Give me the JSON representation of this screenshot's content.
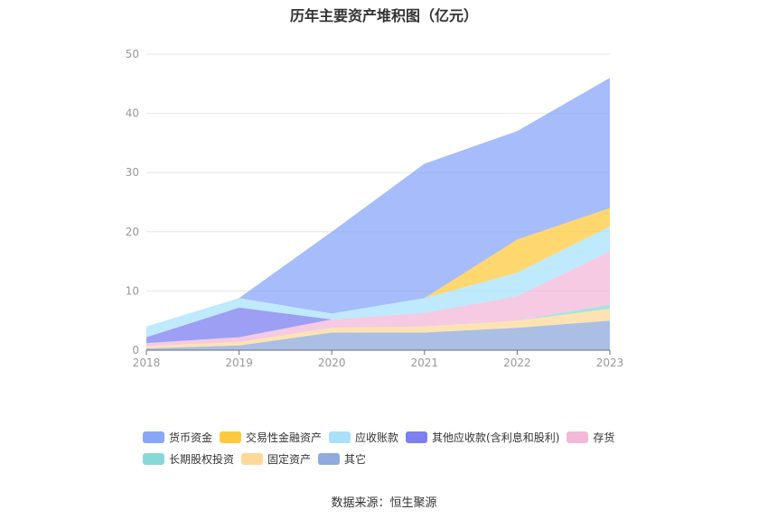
{
  "chart_data": {
    "type": "area",
    "stacked": true,
    "title": "历年主要资产堆积图（亿元）",
    "x": [
      "2018",
      "2019",
      "2020",
      "2021",
      "2022",
      "2023"
    ],
    "ylim": [
      0,
      50
    ],
    "yticks": [
      0,
      10,
      20,
      30,
      40,
      50
    ],
    "grid": true,
    "legend_position": "bottom",
    "series": [
      {
        "name": "其它",
        "color": "#8faadc",
        "values": [
          0.3,
          0.8,
          3.0,
          3.0,
          3.8,
          5.0
        ]
      },
      {
        "name": "固定资产",
        "color": "#fdd998",
        "values": [
          0.4,
          0.6,
          0.8,
          1.0,
          1.2,
          2.0
        ]
      },
      {
        "name": "长期股权投资",
        "color": "#88d9d6",
        "values": [
          0.0,
          0.0,
          0.0,
          0.0,
          0.0,
          0.7
        ]
      },
      {
        "name": "存货",
        "color": "#f2b8d8",
        "values": [
          0.5,
          0.8,
          1.4,
          2.3,
          4.1,
          9.0
        ]
      },
      {
        "name": "其他应收款(含利息和股利)",
        "color": "#7b7ff0",
        "values": [
          1.0,
          5.0,
          0.0,
          0.0,
          0.0,
          0.0
        ]
      },
      {
        "name": "应收账款",
        "color": "#a9e1fc",
        "values": [
          1.8,
          1.6,
          1.0,
          2.5,
          4.0,
          4.2
        ]
      },
      {
        "name": "交易性金融资产",
        "color": "#ffc93f",
        "values": [
          0.0,
          0.0,
          0.0,
          0.0,
          5.6,
          3.1
        ]
      },
      {
        "name": "货币资金",
        "color": "#89a6f8",
        "values": [
          0.0,
          0.0,
          13.8,
          22.7,
          18.3,
          22.0
        ]
      }
    ],
    "legend_order": [
      "货币资金",
      "交易性金融资产",
      "应收账款",
      "其他应收款(含利息和股利)",
      "存货",
      "长期股权投资",
      "固定资产",
      "其它"
    ]
  },
  "source": "数据来源：恒生聚源"
}
